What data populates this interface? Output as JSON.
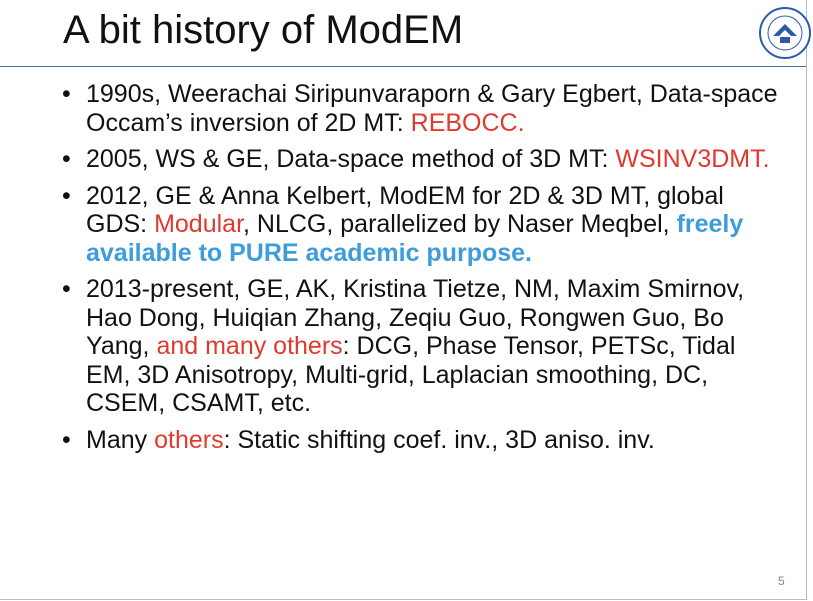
{
  "title": "A bit history of ModEM",
  "bullets": [
    {
      "segments": [
        {
          "text": "1990s, Weerachai Siripunvaraporn & Gary Egbert, Data-space Occam’s inversion of 2D MT: "
        },
        {
          "text": "REBOCC.",
          "style": "red"
        }
      ]
    },
    {
      "segments": [
        {
          "text": "2005, WS & GE, Data-space method of 3D MT: "
        },
        {
          "text": "WSINV3DMT.",
          "style": "red"
        }
      ]
    },
    {
      "segments": [
        {
          "text": "2012, GE & Anna Kelbert, ModEM for 2D & 3D MT, global GDS: "
        },
        {
          "text": "Modular",
          "style": "red"
        },
        {
          "text": ", NLCG, parallelized by Naser Meqbel, "
        },
        {
          "text": "freely available to PURE academic purpose.",
          "style": "blue"
        }
      ]
    },
    {
      "segments": [
        {
          "text": "2013-present, GE, AK, Kristina Tietze, NM, Maxim Smirnov, Hao Dong, Huiqian Zhang, Zeqiu Guo, Rongwen Guo, Bo Yang, "
        },
        {
          "text": "and many others",
          "style": "red"
        },
        {
          "text": ": DCG, Phase Tensor, PETSc, Tidal EM, 3D Anisotropy, Multi-grid, Laplacian smoothing, DC, CSEM, CSAMT, etc."
        }
      ]
    },
    {
      "segments": [
        {
          "text": "Many "
        },
        {
          "text": "others",
          "style": "red"
        },
        {
          "text": ": Static shifting coef. inv., 3D aniso. inv."
        }
      ]
    }
  ],
  "page_number": "5"
}
